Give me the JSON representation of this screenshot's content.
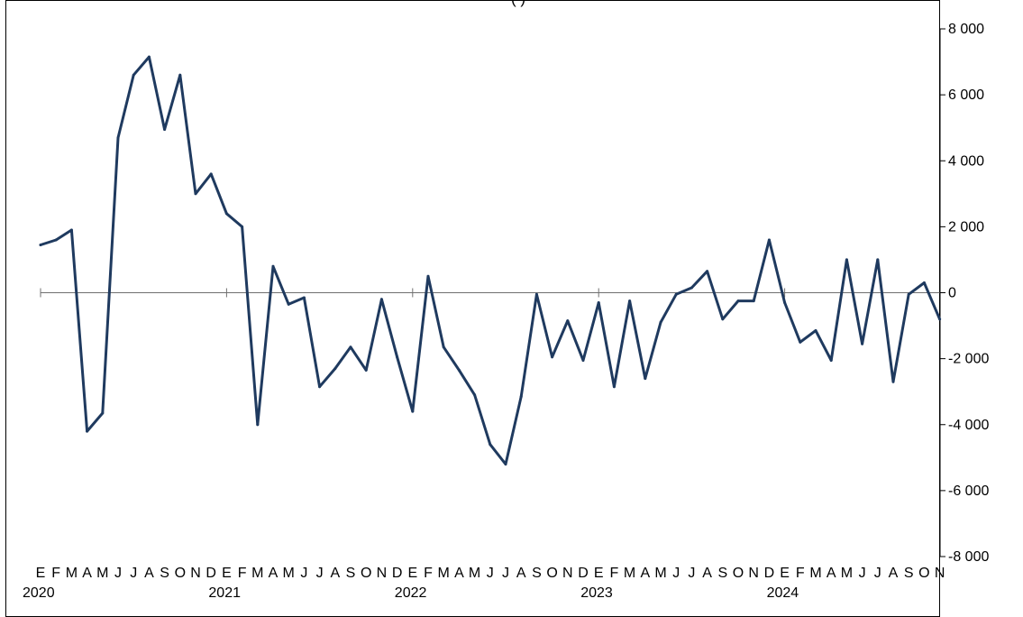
{
  "title": "(                              )",
  "chart_data": {
    "type": "line",
    "title": "(                              )",
    "xlabel": "",
    "ylabel": "",
    "ylim": [
      -8000,
      8000
    ],
    "yticks": [
      8000,
      6000,
      4000,
      2000,
      0,
      -2000,
      -4000,
      -6000,
      -8000
    ],
    "ytick_labels": [
      "8 000",
      "6 000",
      "4 000",
      "2 000",
      "0",
      "-2 000",
      "-4 000",
      "-6 000",
      "-8 000"
    ],
    "y_axis_position": "right",
    "grid": false,
    "legend": "none",
    "line_color": "#1f3a5f",
    "month_labels": [
      "E",
      "F",
      "M",
      "A",
      "M",
      "J",
      "J",
      "A",
      "S",
      "O",
      "N",
      "D",
      "E",
      "F",
      "M",
      "A",
      "M",
      "J",
      "J",
      "A",
      "S",
      "O",
      "N",
      "D",
      "E",
      "F",
      "M",
      "A",
      "M",
      "J",
      "J",
      "A",
      "S",
      "O",
      "N",
      "D",
      "E",
      "F",
      "M",
      "A",
      "M",
      "J",
      "J",
      "A",
      "S",
      "O",
      "N",
      "D",
      "E",
      "F",
      "M",
      "A",
      "M",
      "J",
      "J",
      "A",
      "S",
      "O",
      "N"
    ],
    "years": [
      {
        "label": "2020",
        "start_index": 0
      },
      {
        "label": "2021",
        "start_index": 12
      },
      {
        "label": "2022",
        "start_index": 24
      },
      {
        "label": "2023",
        "start_index": 36
      },
      {
        "label": "2024",
        "start_index": 48
      }
    ],
    "values": [
      1450,
      1600,
      1900,
      -4200,
      -3650,
      4700,
      6600,
      7150,
      4950,
      6600,
      3000,
      3600,
      2400,
      2000,
      -4000,
      800,
      -350,
      -150,
      -2850,
      -2300,
      -1650,
      -2350,
      -200,
      -1950,
      -3600,
      500,
      -1650,
      -2350,
      -3100,
      -4600,
      -5200,
      -3150,
      -50,
      -1950,
      -850,
      -2050,
      -300,
      -2850,
      -250,
      -2600,
      -900,
      -50,
      150,
      650,
      -800,
      -250,
      -250,
      1600,
      -300,
      -1500,
      -1150,
      -2050,
      1000,
      -1550,
      1000,
      -2700,
      -50,
      300,
      -800
    ]
  }
}
